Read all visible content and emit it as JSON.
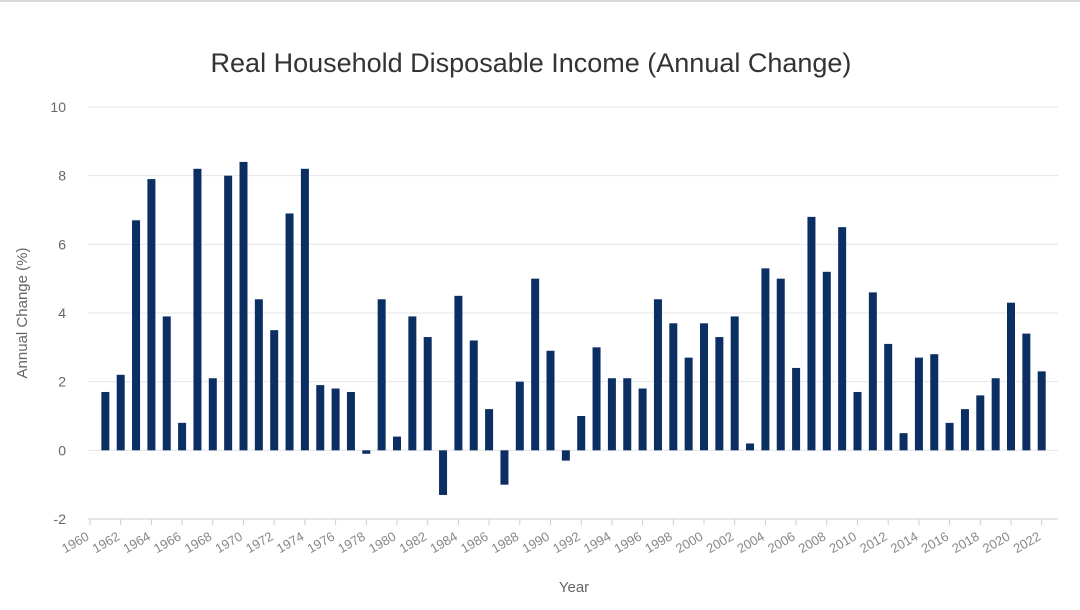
{
  "colors": {
    "bar": "#0b2f63",
    "title": "#333333",
    "grid": "#e6e6e6",
    "axis_text": "#666666",
    "axis_line": "#cccccc"
  },
  "chart_data": {
    "type": "bar",
    "title": "Real Household Disposable Income (Annual Change)",
    "xlabel": "Year",
    "ylabel": "Annual Change (%)",
    "ylim": [
      -2,
      10
    ],
    "y_ticks": [
      "-2",
      "0",
      "2",
      "4",
      "6",
      "8",
      "10"
    ],
    "x_tick_labels": [
      "1960",
      "1962",
      "1964",
      "1966",
      "1968",
      "1970",
      "1972",
      "1974",
      "1976",
      "1978",
      "1980",
      "1982",
      "1984",
      "1986",
      "1988",
      "1990",
      "1992",
      "1994",
      "1996",
      "1998",
      "2000",
      "2002",
      "2004",
      "2006",
      "2008",
      "2010",
      "2012",
      "2014",
      "2016",
      "2018",
      "2020",
      "2022"
    ],
    "grid": true,
    "legend": "none",
    "categories": [
      1961,
      1962,
      1963,
      1964,
      1965,
      1966,
      1967,
      1968,
      1969,
      1970,
      1971,
      1972,
      1973,
      1974,
      1975,
      1976,
      1977,
      1978,
      1979,
      1980,
      1981,
      1982,
      1983,
      1984,
      1985,
      1986,
      1987,
      1988,
      1989,
      1990,
      1991,
      1992,
      1993,
      1994,
      1995,
      1996,
      1997,
      1998,
      1999,
      2000,
      2001,
      2002,
      2003,
      2004,
      2005,
      2006,
      2007,
      2008,
      2009,
      2010,
      2011,
      2012,
      2013,
      2014,
      2015,
      2016,
      2017,
      2018,
      2019,
      2020,
      2021,
      2022
    ],
    "values": [
      1.7,
      2.2,
      6.7,
      7.9,
      3.9,
      0.8,
      8.2,
      2.1,
      8.0,
      8.4,
      4.4,
      3.5,
      6.9,
      8.2,
      1.9,
      1.8,
      1.7,
      -0.1,
      4.4,
      0.4,
      3.9,
      3.3,
      -1.3,
      4.5,
      3.2,
      1.2,
      -1.0,
      2.0,
      5.0,
      2.9,
      -0.3,
      1.0,
      3.0,
      2.1,
      2.1,
      1.8,
      4.4,
      3.7,
      2.7,
      3.7,
      3.3,
      3.9,
      0.2,
      5.3,
      5.0,
      2.4,
      6.8,
      5.2,
      6.5,
      1.7,
      4.6,
      3.1,
      0.5,
      2.7,
      2.8,
      0.8,
      1.2,
      1.6,
      2.1,
      4.3,
      3.4,
      2.3
    ]
  }
}
